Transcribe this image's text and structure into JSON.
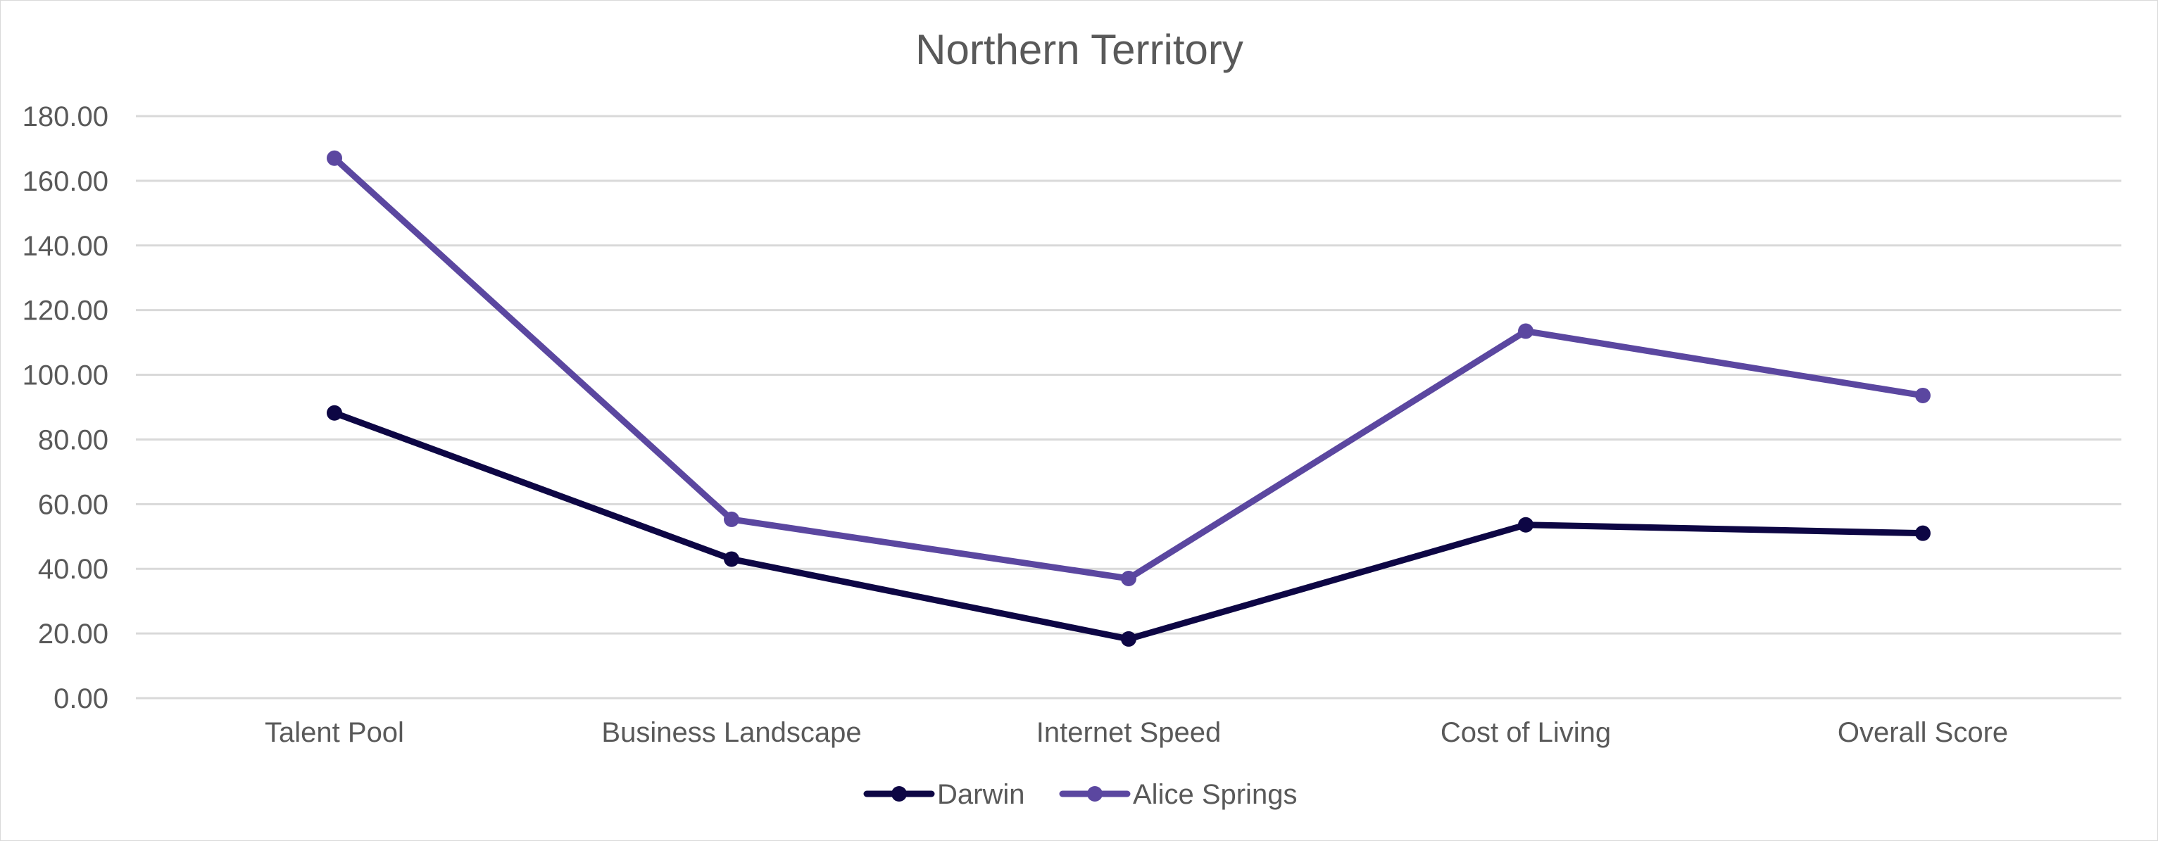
{
  "chart_data": {
    "type": "line",
    "title": "Northern Territory",
    "categories": [
      "Talent Pool",
      "Business Landscape",
      "Internet Speed",
      "Cost of Living",
      "Overall Score"
    ],
    "series": [
      {
        "name": "Darwin",
        "color": "#0d0644",
        "values": [
          88.2,
          43.0,
          18.3,
          53.6,
          51.0
        ]
      },
      {
        "name": "Alice Springs",
        "color": "#5b47a0",
        "values": [
          167.0,
          55.3,
          37.0,
          113.5,
          93.6
        ]
      }
    ],
    "ylim": [
      0,
      180
    ],
    "yticks": [
      "0.00",
      "20.00",
      "40.00",
      "60.00",
      "80.00",
      "100.00",
      "120.00",
      "140.00",
      "160.00",
      "180.00"
    ],
    "grid": true,
    "legend_position": "bottom",
    "gridline_color": "#d9d9d9"
  }
}
